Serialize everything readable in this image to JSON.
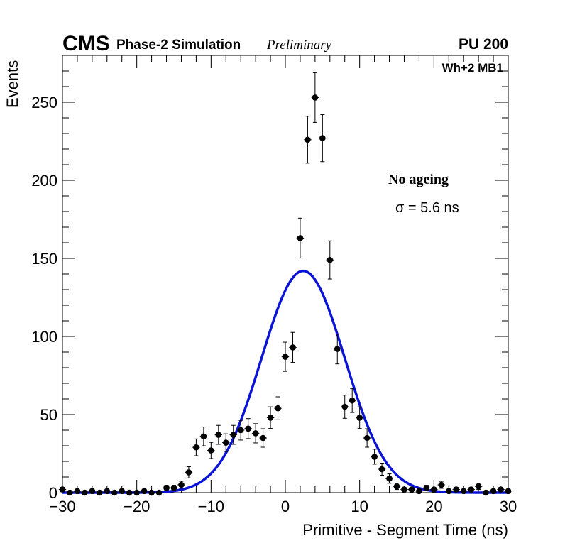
{
  "chart_data": {
    "type": "scatter",
    "header": {
      "experiment": "CMS",
      "detail": "Phase-2 Simulation",
      "status": "Preliminary",
      "pileup": "PU 200"
    },
    "xlabel": "Primitive - Segment Time (ns)",
    "ylabel": "Events",
    "xlim": [
      -30,
      30
    ],
    "ylim": [
      0,
      280
    ],
    "xticks": [
      -30,
      -20,
      -10,
      0,
      10,
      20,
      30
    ],
    "xtick_labels": [
      "−30",
      "−20",
      "−10",
      "0",
      "10",
      "20",
      "30"
    ],
    "yticks": [
      0,
      50,
      100,
      150,
      200,
      250
    ],
    "ytick_labels": [
      "0",
      "50",
      "100",
      "150",
      "200",
      "250"
    ],
    "grid": false,
    "annotations": {
      "region": "Wh+2 MB1",
      "condition": "No ageing",
      "sigma": "σ = 5.6 ns"
    },
    "series": [
      {
        "name": "Simulation",
        "kind": "points_with_errors",
        "color": "#000000",
        "x": [
          -30,
          -29,
          -28,
          -27,
          -26,
          -25,
          -24,
          -23,
          -22,
          -21,
          -20,
          -19,
          -18,
          -17,
          -16,
          -15,
          -14,
          -13,
          -12,
          -11,
          -10,
          -9,
          -8,
          -7,
          -6,
          -5,
          -4,
          -3,
          -2,
          -1,
          0,
          1,
          2,
          3,
          4,
          5,
          6,
          7,
          8,
          9,
          10,
          11,
          12,
          13,
          14,
          15,
          16,
          17,
          18,
          19,
          20,
          21,
          22,
          23,
          24,
          25,
          26,
          27,
          28,
          29,
          30
        ],
        "y": [
          2,
          0,
          1,
          0,
          1,
          0,
          1,
          0,
          1,
          0,
          0,
          1,
          0,
          0,
          3,
          3,
          5,
          13,
          29,
          36,
          27,
          37,
          32,
          37,
          40,
          41,
          38,
          35,
          48,
          54,
          87,
          93,
          163,
          226,
          253,
          227,
          149,
          92,
          55,
          59,
          48,
          35,
          23,
          15,
          9,
          4,
          2,
          2,
          1,
          3,
          2,
          5,
          1,
          2,
          1,
          2,
          4,
          0,
          1,
          2,
          1
        ]
      },
      {
        "name": "Gaussian fit",
        "kind": "gaussian",
        "color": "#0a14d6",
        "amplitude": 142,
        "mean": 2.4,
        "sigma": 5.6
      }
    ]
  }
}
